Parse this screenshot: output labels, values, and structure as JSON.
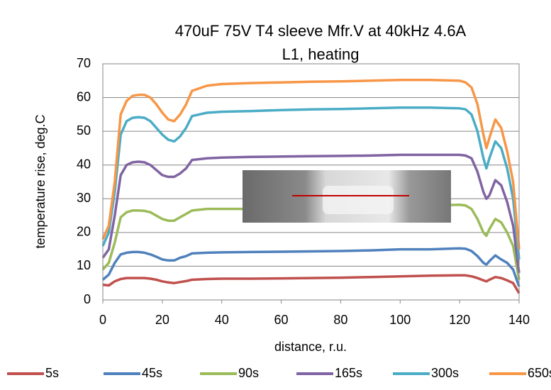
{
  "chart_data": {
    "type": "line",
    "title": [
      "470uF 75V T4 sleeve Mfr.V at 40kHz 4.6A",
      "L1, heating"
    ],
    "x_label": "distance, r.u.",
    "y_label": "temperature rise, deg.C",
    "x": [
      0,
      2,
      4,
      6,
      8,
      10,
      12,
      14,
      16,
      18,
      20,
      22,
      24,
      26,
      28,
      30,
      35,
      40,
      50,
      60,
      70,
      80,
      90,
      100,
      110,
      120,
      122,
      124,
      126,
      128,
      129,
      130,
      132,
      134,
      136,
      138,
      140
    ],
    "series": [
      {
        "name": "5s",
        "color": "#c0504d",
        "values": [
          4.5,
          4.3,
          5.5,
          6.2,
          6.5,
          6.5,
          6.5,
          6.5,
          6.3,
          6,
          5.5,
          5.2,
          5,
          5.3,
          5.6,
          6,
          6.2,
          6.3,
          6.3,
          6.4,
          6.5,
          6.6,
          6.8,
          7,
          7.2,
          7.3,
          7.3,
          7,
          6.5,
          5.8,
          5.5,
          6,
          6.8,
          6.5,
          5.8,
          5,
          2
        ]
      },
      {
        "name": "45s",
        "color": "#4f81bd",
        "values": [
          6,
          7.5,
          11,
          13.5,
          14,
          14.2,
          14.2,
          14,
          13.5,
          12.8,
          12,
          11.7,
          11.7,
          12.5,
          13,
          13.8,
          14,
          14.1,
          14.2,
          14.3,
          14.4,
          14.5,
          14.7,
          15,
          15,
          15.3,
          15.2,
          14.5,
          13,
          11,
          10.5,
          11.5,
          13.2,
          12,
          11,
          9,
          4
        ]
      },
      {
        "name": "90s",
        "color": "#9bbb59",
        "values": [
          9,
          11,
          17,
          24.5,
          26,
          26.5,
          26.5,
          26.4,
          26,
          25,
          24,
          23.5,
          23.5,
          24.5,
          25.5,
          26.5,
          27,
          27,
          27,
          27.2,
          27.4,
          27.5,
          27.6,
          27.8,
          28,
          28.2,
          28,
          27,
          24,
          20,
          19,
          21,
          24,
          23,
          20,
          16,
          6
        ]
      },
      {
        "name": "165s",
        "color": "#8064a2",
        "values": [
          12.5,
          15,
          25,
          37,
          40,
          40.8,
          41,
          40.8,
          40,
          38.5,
          37,
          36.5,
          36.5,
          37.5,
          39,
          41.5,
          42,
          42.2,
          42.4,
          42.5,
          42.6,
          42.7,
          42.8,
          43,
          43,
          43,
          42.8,
          42,
          38,
          32,
          30,
          31,
          35.5,
          34,
          29,
          22,
          8
        ]
      },
      {
        "name": "300s",
        "color": "#4bacc6",
        "values": [
          16,
          20,
          32,
          49,
          53,
          54,
          54.2,
          54,
          53,
          51,
          49,
          47.5,
          47,
          48.5,
          51,
          54.5,
          55.5,
          55.8,
          56,
          56.3,
          56.5,
          56.6,
          56.8,
          57,
          57,
          56.8,
          56.5,
          55,
          50,
          42,
          39,
          42,
          47,
          45,
          39,
          30,
          12
        ]
      },
      {
        "name": "650s",
        "color": "#f79646",
        "values": [
          18,
          22,
          35,
          55,
          59,
          60.5,
          60.8,
          60.8,
          60,
          58,
          55.5,
          53.5,
          53,
          55,
          58,
          62,
          63.5,
          64,
          64.3,
          64.5,
          64.7,
          64.8,
          65,
          65.2,
          65.2,
          65,
          64.5,
          63,
          58,
          49,
          45,
          48,
          53.5,
          51,
          44,
          35,
          15
        ]
      }
    ],
    "xlim": [
      0,
      140
    ],
    "xticks": [
      0,
      20,
      40,
      60,
      80,
      100,
      120,
      140
    ],
    "ylim": [
      0,
      70
    ],
    "yticks": [
      0,
      10,
      20,
      30,
      40,
      50,
      60,
      70
    ],
    "grid": true,
    "legend": "bottom"
  }
}
